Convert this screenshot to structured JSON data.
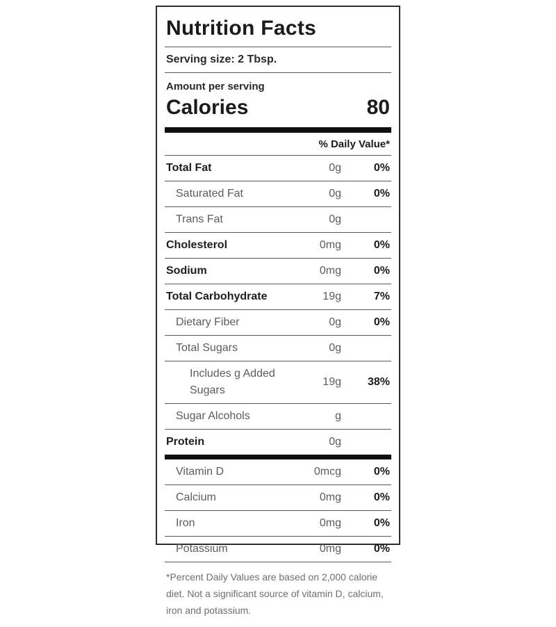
{
  "label": {
    "title": "Nutrition Facts",
    "serving_size": "Serving size: 2 Tbsp.",
    "amount_per_serving": "Amount per serving",
    "calories_label": "Calories",
    "calories_value": "80",
    "daily_value_header": "% Daily Value*",
    "rows": [
      {
        "name": "Total Fat",
        "amount": "0g",
        "dv": "0%",
        "bold": true,
        "indent": 0
      },
      {
        "name": "Saturated Fat",
        "amount": "0g",
        "dv": "0%",
        "bold": false,
        "indent": 1
      },
      {
        "name": "Trans Fat",
        "amount": "0g",
        "dv": "",
        "bold": false,
        "indent": 1
      },
      {
        "name": "Cholesterol",
        "amount": "0mg",
        "dv": "0%",
        "bold": true,
        "indent": 0
      },
      {
        "name": "Sodium",
        "amount": "0mg",
        "dv": "0%",
        "bold": true,
        "indent": 0
      },
      {
        "name": "Total Carbohydrate",
        "amount": "19g",
        "dv": "7%",
        "bold": true,
        "indent": 0
      },
      {
        "name": "Dietary Fiber",
        "amount": "0g",
        "dv": "0%",
        "bold": false,
        "indent": 1
      },
      {
        "name": "Total Sugars",
        "amount": "0g",
        "dv": "",
        "bold": false,
        "indent": 1
      },
      {
        "name": "Includes g Added Sugars",
        "amount": "19g",
        "dv": "38%",
        "bold": false,
        "indent": 2
      },
      {
        "name": "Sugar Alcohols",
        "amount": "g",
        "dv": "",
        "bold": false,
        "indent": 1
      },
      {
        "name": "Protein",
        "amount": "0g",
        "dv": "",
        "bold": true,
        "indent": 0,
        "last": true
      }
    ],
    "micronutrients": [
      {
        "name": "Vitamin D",
        "amount": "0mcg",
        "dv": "0%"
      },
      {
        "name": "Calcium",
        "amount": "0mg",
        "dv": "0%"
      },
      {
        "name": "Iron",
        "amount": "0mg",
        "dv": "0%"
      },
      {
        "name": "Potassium",
        "amount": "0mg",
        "dv": "0%"
      }
    ],
    "footnote": "*Percent Daily Values are based on 2,000 calorie diet. Not a significant source of vitamin D, calcium, iron and potassium."
  }
}
